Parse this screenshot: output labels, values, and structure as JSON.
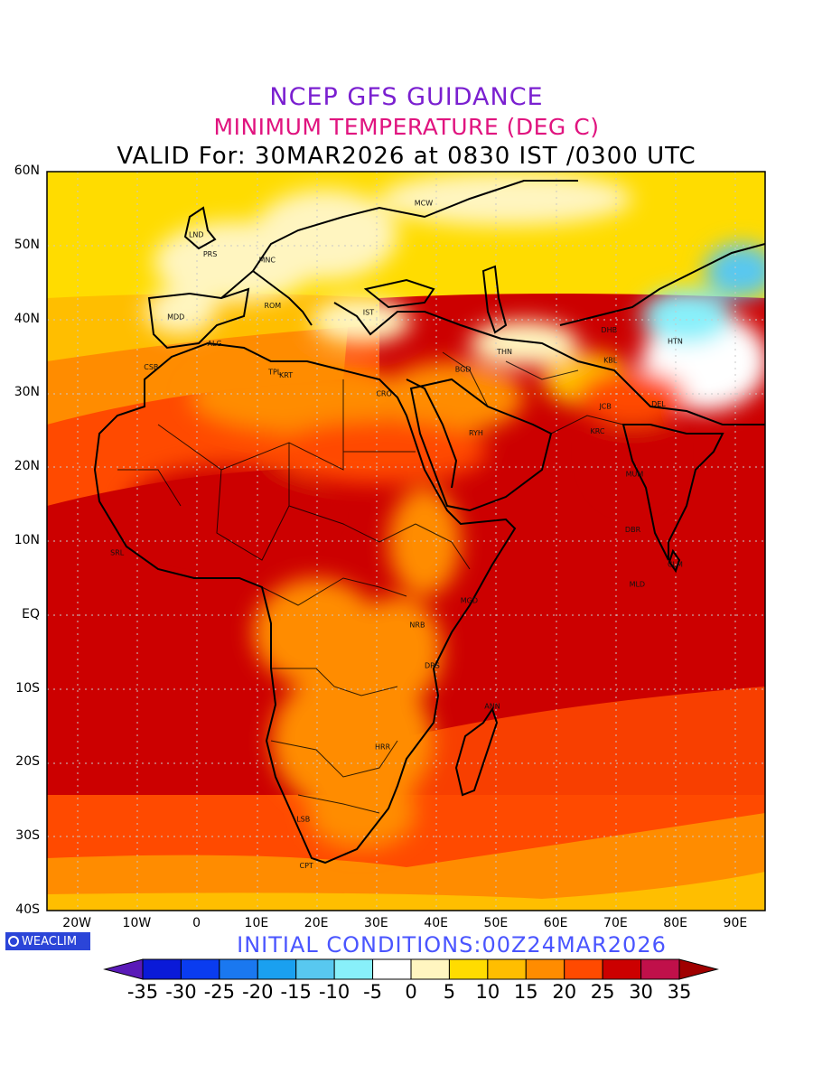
{
  "title": {
    "line1": "NCEP GFS GUIDANCE",
    "line2": "MINIMUM TEMPERATURE (DEG C)",
    "line3": "VALID For: 30MAR2026 at 0830 IST /0300 UTC"
  },
  "initial_conditions": "INITIAL CONDITIONS:00Z24MAR2026",
  "logo_text": "WEACLIM",
  "map": {
    "lon_range": [
      -25,
      95
    ],
    "lat_range": [
      -40,
      60
    ],
    "lat_ticks": [
      "60N",
      "50N",
      "40N",
      "30N",
      "20N",
      "10N",
      "EQ",
      "10S",
      "20S",
      "30S",
      "40S"
    ],
    "lon_ticks": [
      "20W",
      "10W",
      "0",
      "10E",
      "20E",
      "30E",
      "40E",
      "50E",
      "60E",
      "70E",
      "80E",
      "90E"
    ],
    "grid": true,
    "cities": [
      {
        "name": "MCW",
        "lon": 37.6,
        "lat": 55.8
      },
      {
        "name": "LND",
        "lon": -0.1,
        "lat": 51.5
      },
      {
        "name": "PRS",
        "lon": 2.3,
        "lat": 48.9
      },
      {
        "name": "MNC",
        "lon": 11.6,
        "lat": 48.1
      },
      {
        "name": "ROM",
        "lon": 12.5,
        "lat": 41.9
      },
      {
        "name": "MDD",
        "lon": -3.7,
        "lat": 40.4
      },
      {
        "name": "IST",
        "lon": 29.0,
        "lat": 41.0
      },
      {
        "name": "ALG",
        "lon": 3.0,
        "lat": 36.8
      },
      {
        "name": "CSB",
        "lon": -7.6,
        "lat": 33.6
      },
      {
        "name": "TPL",
        "lon": 13.2,
        "lat": 32.9
      },
      {
        "name": "KRT",
        "lon": 15.0,
        "lat": 32.5
      },
      {
        "name": "CRO",
        "lon": 31.2,
        "lat": 30.0
      },
      {
        "name": "BGD",
        "lon": 44.4,
        "lat": 33.3
      },
      {
        "name": "THN",
        "lon": 51.4,
        "lat": 35.7
      },
      {
        "name": "DHB",
        "lon": 68.8,
        "lat": 38.6
      },
      {
        "name": "HTN",
        "lon": 79.9,
        "lat": 37.1
      },
      {
        "name": "KBL",
        "lon": 69.2,
        "lat": 34.5
      },
      {
        "name": "RYH",
        "lon": 46.7,
        "lat": 24.7
      },
      {
        "name": "JCB",
        "lon": 68.5,
        "lat": 28.3
      },
      {
        "name": "KRC",
        "lon": 67.0,
        "lat": 24.9
      },
      {
        "name": "MUM",
        "lon": 72.9,
        "lat": 19.1
      },
      {
        "name": "DEL",
        "lon": 77.2,
        "lat": 28.6
      },
      {
        "name": "DBR",
        "lon": 72.8,
        "lat": 11.6
      },
      {
        "name": "CLM",
        "lon": 79.9,
        "lat": 6.9
      },
      {
        "name": "MLD",
        "lon": 73.5,
        "lat": 4.2
      },
      {
        "name": "MGD",
        "lon": 45.3,
        "lat": 2.0
      },
      {
        "name": "NRB",
        "lon": 36.8,
        "lat": -1.3
      },
      {
        "name": "DRS",
        "lon": 39.3,
        "lat": -6.8
      },
      {
        "name": "ANN",
        "lon": 49.3,
        "lat": -12.3
      },
      {
        "name": "HRR",
        "lon": 31.0,
        "lat": -17.8
      },
      {
        "name": "LSB",
        "lon": 17.9,
        "lat": -27.6
      },
      {
        "name": "CPT",
        "lon": 18.4,
        "lat": -33.9
      },
      {
        "name": "SRL",
        "lon": -13.2,
        "lat": 8.5
      }
    ]
  },
  "colorbar": {
    "labels": [
      "-35",
      "-30",
      "-25",
      "-20",
      "-15",
      "-10",
      "-5",
      "0",
      "5",
      "10",
      "15",
      "20",
      "25",
      "30",
      "35"
    ],
    "colors": [
      "#5a1ab8",
      "#0a1ad8",
      "#0a3cf0",
      "#1a78f0",
      "#1aa0f0",
      "#58c8f0",
      "#88f0fa",
      "#ffffff",
      "#fff5c0",
      "#ffdc00",
      "#ffbe00",
      "#ff8c00",
      "#ff4a00",
      "#cc0000",
      "#c0104a",
      "#a00000"
    ]
  }
}
